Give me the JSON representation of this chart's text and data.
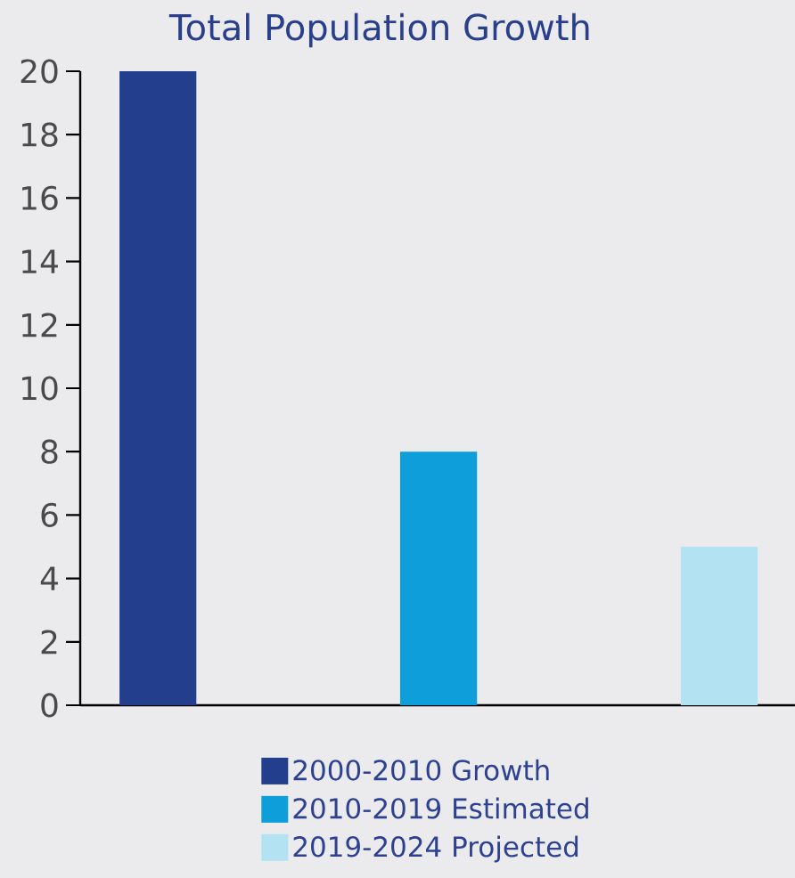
{
  "chart_data": {
    "type": "bar",
    "title": "Total Population Growth",
    "categories": [
      null,
      null,
      null
    ],
    "series": [
      {
        "name": "2000-2010 Growth",
        "color": "#243e8e",
        "values": [
          20,
          null,
          null
        ]
      },
      {
        "name": "2010-2019 Estimated",
        "color": "#0e9fda",
        "values": [
          null,
          8,
          null
        ]
      },
      {
        "name": "2019-2024 Projected",
        "color": "#b3e2f3",
        "values": [
          null,
          null,
          5
        ]
      }
    ],
    "ylim": [
      0,
      20
    ],
    "yticks": [
      0,
      2,
      4,
      6,
      8,
      10,
      12,
      14,
      16,
      18,
      20
    ],
    "legend": "bottom"
  }
}
